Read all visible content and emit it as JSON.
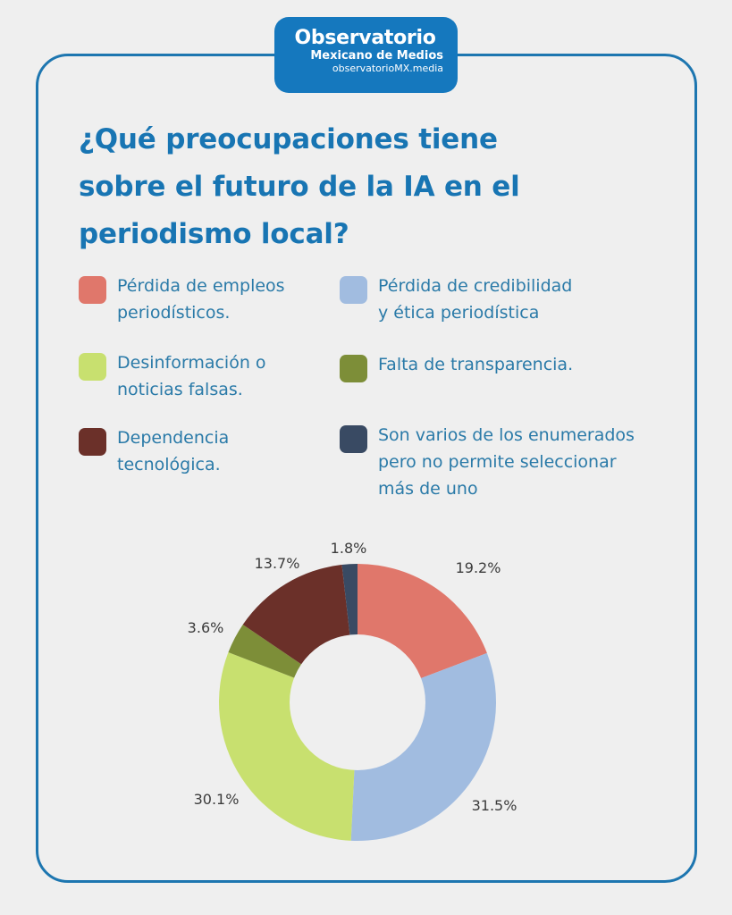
{
  "logo": {
    "line1": "Observatorio",
    "line2": "Mexicano de Medios",
    "line3": "observatorioMX.media"
  },
  "title": {
    "line1": "¿Qué preocupaciones tiene",
    "line2": "sobre el futuro de la IA en el",
    "line3": "periodismo local?"
  },
  "legend": [
    {
      "line1": "Pérdida de empleos",
      "line2": "periodísticos.",
      "line3": "",
      "color": "#e0776b"
    },
    {
      "line1": "Desinformación o",
      "line2": "noticias falsas.",
      "line3": "",
      "color": "#c8e06f"
    },
    {
      "line1": "Dependencia",
      "line2": "tecnológica.",
      "line3": "",
      "color": "#6b3029"
    },
    {
      "line1": "Pérdida de credibilidad",
      "line2": "y ética periodística",
      "line3": "",
      "color": "#a1bce0"
    },
    {
      "line1": "Falta de transparencia.",
      "line2": "",
      "line3": "",
      "color": "#7d8e38"
    },
    {
      "line1": "Son varios de los enumerados",
      "line2": "pero no permite seleccionar",
      "line3": "más de uno",
      "color": "#394a63"
    }
  ],
  "chart_data": {
    "type": "pie",
    "variant": "donut",
    "title": "¿Qué preocupaciones tiene sobre el futuro de la IA en el periodismo local?",
    "start": "12 o'clock, clockwise",
    "categories": [
      "Pérdida de empleos periodísticos.",
      "Pérdida de credibilidad y ética periodística",
      "Desinformación o noticias falsas.",
      "Falta de transparencia.",
      "Dependencia tecnológica.",
      "Son varios de los enumerados pero no permite seleccionar más de uno"
    ],
    "values": [
      19.2,
      31.5,
      30.1,
      3.6,
      13.7,
      1.8
    ],
    "labels": [
      "19.2%",
      "31.5%",
      "30.1%",
      "3.6%",
      "13.7%",
      "1.8%"
    ],
    "colors": [
      "#e0776b",
      "#a1bce0",
      "#c8e06f",
      "#7d8e38",
      "#6b3029",
      "#394a63"
    ],
    "legend_position": "top"
  }
}
